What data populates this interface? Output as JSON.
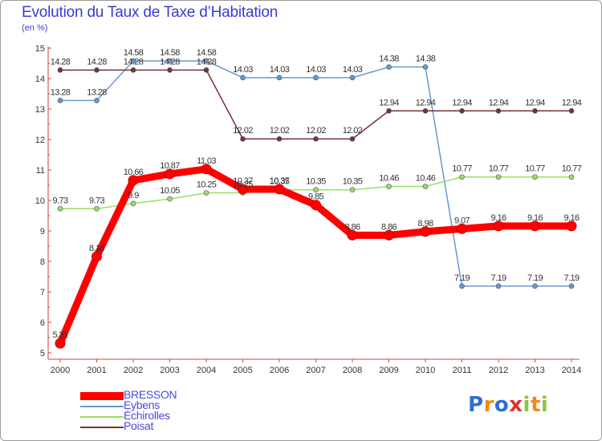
{
  "chart_data": {
    "type": "line",
    "title": "Evolution du Taux de Taxe d’Habitation",
    "subtitle": "(en %)",
    "categories": [
      "2000",
      "2001",
      "2002",
      "2003",
      "2004",
      "2005",
      "2006",
      "2007",
      "2008",
      "2009",
      "2010",
      "2011",
      "2012",
      "2013",
      "2014"
    ],
    "ylim": [
      5,
      15
    ],
    "yticks": [
      "5",
      "6",
      "7",
      "8",
      "9",
      "10",
      "11",
      "12",
      "13",
      "14",
      "15"
    ],
    "grid": false,
    "legend_position": "bottom-left",
    "series": [
      {
        "name": "BRESSON",
        "color": "#ff0000",
        "values": [
          5.31,
          8.16,
          10.66,
          10.87,
          11.03,
          10.37,
          10.37,
          9.85,
          8.86,
          8.86,
          8.98,
          9.07,
          9.16,
          9.16,
          9.16
        ],
        "labels": [
          "5.31",
          "8.16",
          "10.66",
          "10.87",
          "11.03",
          "10.37",
          "10.37",
          "9.85",
          "8.86",
          "8.86",
          "8.98",
          "9.07",
          "9.16",
          "9.16",
          "9.16"
        ]
      },
      {
        "name": "Eybens",
        "color": "#6699cc",
        "values": [
          13.28,
          13.28,
          14.58,
          14.58,
          14.58,
          14.03,
          14.03,
          14.03,
          14.03,
          14.38,
          14.38,
          7.19,
          7.19,
          7.19,
          7.19
        ],
        "labels": [
          "13.28",
          "13.28",
          "14.58",
          "14.58",
          "14.58",
          "14.03",
          "14.03",
          "14.03",
          "14.03",
          "14.38",
          "14.38",
          "7.19",
          "7.19",
          "7.19",
          "7.19"
        ]
      },
      {
        "name": "Échirolles",
        "color": "#99dd66",
        "values": [
          9.73,
          9.73,
          9.9,
          10.05,
          10.25,
          10.25,
          10.35,
          10.35,
          10.35,
          10.46,
          10.46,
          10.77,
          10.77,
          10.77,
          10.77
        ],
        "labels": [
          "9.73",
          "9.73",
          "9.9",
          "10.05",
          "10.25",
          "10.25",
          "10.35",
          "10.35",
          "10.35",
          "10.46",
          "10.46",
          "10.77",
          "10.77",
          "10.77",
          "10.77"
        ]
      },
      {
        "name": "Poisat",
        "color": "#773333",
        "values": [
          14.28,
          14.28,
          14.28,
          14.28,
          14.28,
          12.02,
          12.02,
          12.02,
          12.02,
          12.94,
          12.94,
          12.94,
          12.94,
          12.94,
          12.94
        ],
        "labels": [
          "14.28",
          "14.28",
          "14.28",
          "14.28",
          "14.28",
          "12.02",
          "12.02",
          "12.02",
          "12.02",
          "12.94",
          "12.94",
          "12.94",
          "12.94",
          "12.94",
          "12.94"
        ]
      }
    ]
  },
  "logo": {
    "letters": [
      "P",
      "r",
      "o",
      "x",
      "i",
      "t",
      "i"
    ]
  }
}
